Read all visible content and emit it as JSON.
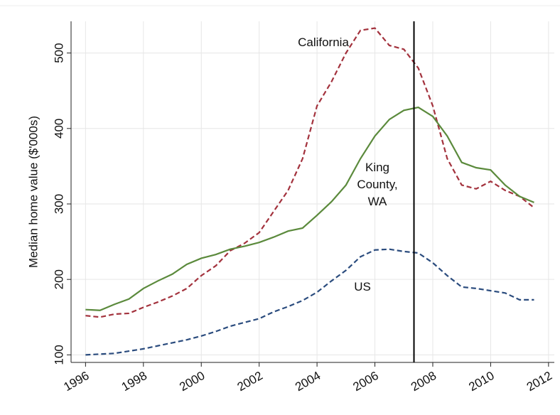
{
  "chart_data": {
    "type": "line",
    "y_label": "Median home value ($'000s)",
    "x": [
      1996,
      1996.5,
      1997,
      1997.5,
      1998,
      1998.5,
      1999,
      1999.5,
      2000,
      2000.5,
      2001,
      2001.5,
      2002,
      2002.5,
      2003,
      2003.5,
      2004,
      2004.5,
      2005,
      2005.5,
      2006,
      2006.5,
      2007,
      2007.5,
      2008,
      2008.5,
      2009,
      2009.5,
      2010,
      2010.5,
      2011,
      2011.5
    ],
    "series": [
      {
        "name": "California",
        "color": "#a3323d",
        "linestyle": "dashed",
        "values": [
          152,
          150,
          154,
          155,
          163,
          170,
          178,
          188,
          205,
          218,
          238,
          248,
          262,
          290,
          318,
          360,
          430,
          462,
          500,
          530,
          533,
          510,
          505,
          480,
          430,
          360,
          325,
          320,
          330,
          318,
          310,
          295
        ]
      },
      {
        "name": "King County, WA",
        "color": "#5b8a3c",
        "linestyle": "solid",
        "values": [
          160,
          159,
          167,
          174,
          188,
          198,
          207,
          220,
          228,
          233,
          240,
          244,
          249,
          256,
          264,
          268,
          285,
          303,
          325,
          360,
          390,
          412,
          424,
          428,
          416,
          390,
          355,
          348,
          345,
          325,
          310,
          302
        ]
      },
      {
        "name": "US",
        "color": "#2b4c7e",
        "linestyle": "dashed",
        "values": [
          100,
          101,
          102,
          105,
          108,
          112,
          116,
          120,
          125,
          131,
          138,
          143,
          148,
          157,
          164,
          172,
          183,
          198,
          212,
          230,
          239,
          240,
          237,
          235,
          222,
          205,
          190,
          188,
          185,
          182,
          173,
          173
        ]
      }
    ],
    "vline": 2007.35,
    "xlim": [
      1995.5,
      2012.2
    ],
    "xticks": [
      1996,
      1998,
      2000,
      2002,
      2004,
      2006,
      2008,
      2010,
      2012
    ],
    "ylim": [
      90,
      542
    ],
    "yticks": [
      100,
      200,
      300,
      400,
      500
    ],
    "grid": true
  }
}
